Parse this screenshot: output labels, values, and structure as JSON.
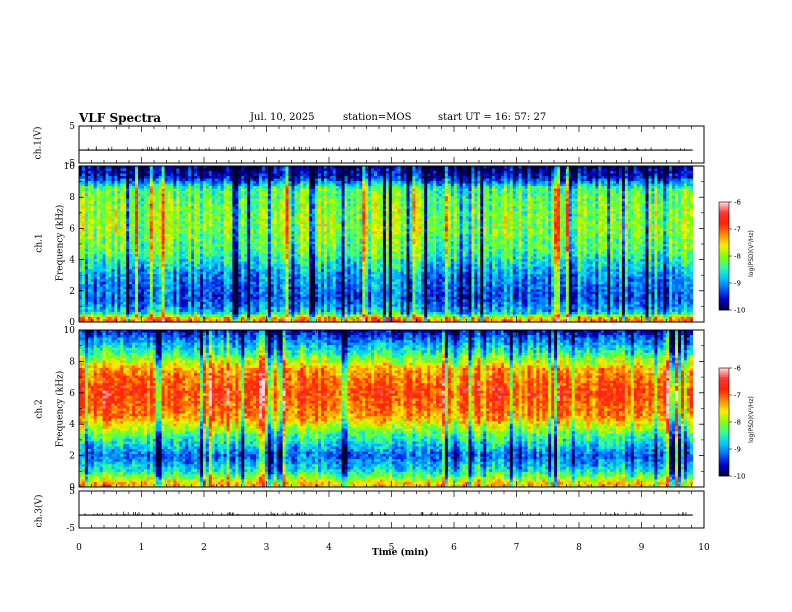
{
  "header": {
    "title": "VLF Spectra",
    "date": "Jul. 10, 2025",
    "station": "station=MOS",
    "start_ut": "start UT =  16: 57: 27"
  },
  "colors": {
    "colormap": [
      "#000033",
      "#0000cc",
      "#0066ff",
      "#00ccff",
      "#33ff99",
      "#88ff00",
      "#ffee00",
      "#ff8800",
      "#ff2200",
      "#ff3333",
      "#ffdddd"
    ]
  },
  "chart_data": [
    {
      "type": "line",
      "name": "ch1-voltage",
      "ylabel": "ch.1(V)",
      "ylim": [
        -5,
        5
      ],
      "yticks": [
        "5",
        "-5"
      ],
      "baseline_value": -1.5
    },
    {
      "type": "heatmap",
      "name": "ch1-spectrogram",
      "ylabel": "ch.1\nFrequency (kHz)",
      "ylabel_lines": [
        "ch.1",
        "Frequency (kHz)"
      ],
      "ylim": [
        0,
        10
      ],
      "yticks": [
        "0",
        "2",
        "4",
        "6",
        "8",
        "10"
      ],
      "band_profile": [
        {
          "f": 0.2,
          "level": -7.2
        },
        {
          "f": 0.6,
          "level": -8.8
        },
        {
          "f": 1.5,
          "level": -9.3
        },
        {
          "f": 3.0,
          "level": -9.0
        },
        {
          "f": 4.5,
          "level": -8.3
        },
        {
          "f": 6.0,
          "level": -8.0
        },
        {
          "f": 7.5,
          "level": -8.1
        },
        {
          "f": 8.5,
          "level": -8.3
        },
        {
          "f": 9.3,
          "level": -9.6
        },
        {
          "f": 9.9,
          "level": -9.8
        }
      ],
      "colorbar": {
        "min": -10,
        "max": -6,
        "ticks": [
          "-6",
          "-7",
          "-8",
          "-9",
          "-10"
        ],
        "label": "log(PSD)(V²/Hz)"
      }
    },
    {
      "type": "heatmap",
      "name": "ch2-spectrogram",
      "ylabel_lines": [
        "ch.2",
        "Frequency (kHz)"
      ],
      "ylim": [
        0,
        10
      ],
      "yticks": [
        "0",
        "2",
        "4",
        "6",
        "8",
        "10"
      ],
      "band_profile": [
        {
          "f": 0.2,
          "level": -7.4
        },
        {
          "f": 1.0,
          "level": -8.6
        },
        {
          "f": 2.0,
          "level": -9.2
        },
        {
          "f": 3.3,
          "level": -8.3
        },
        {
          "f": 4.5,
          "level": -7.2
        },
        {
          "f": 6.0,
          "level": -6.8
        },
        {
          "f": 7.5,
          "level": -7.3
        },
        {
          "f": 8.5,
          "level": -8.4
        },
        {
          "f": 9.5,
          "level": -9.2
        },
        {
          "f": 9.9,
          "level": -9.6
        }
      ],
      "colorbar": {
        "min": -10,
        "max": -6,
        "ticks": [
          "-6",
          "-7",
          "-8",
          "-9",
          "-10"
        ],
        "label": "log(PSD)(V²/Hz)"
      }
    },
    {
      "type": "line",
      "name": "ch3-voltage",
      "ylabel": "ch.3(V)",
      "ylim": [
        -5,
        5
      ],
      "yticks": [
        "5",
        "-5"
      ],
      "baseline_value": -1.5
    }
  ],
  "xaxis": {
    "label": "Time (min)",
    "ticks": [
      "0",
      "1",
      "2",
      "3",
      "4",
      "5",
      "6",
      "7",
      "8",
      "9",
      "10"
    ],
    "xlim": [
      0,
      10
    ],
    "data_end": 9.82
  }
}
